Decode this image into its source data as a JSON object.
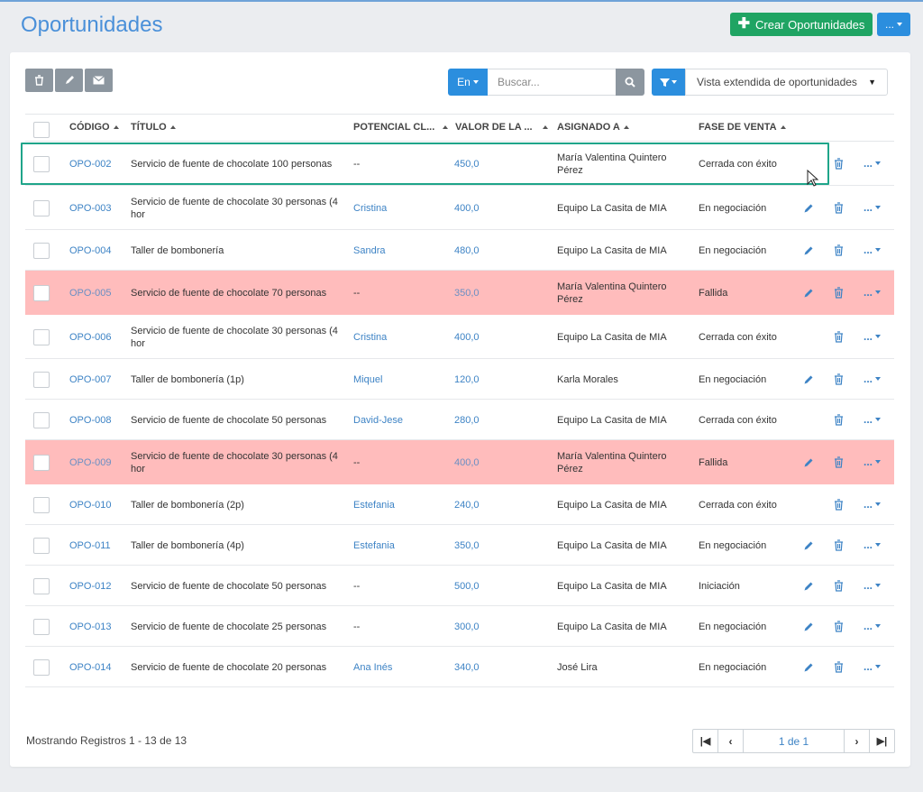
{
  "page": {
    "title": "Oportunidades"
  },
  "header": {
    "create_label": "Crear Oportunidades",
    "more_label": "..."
  },
  "toolbar": {
    "lang_label": "En",
    "search_placeholder": "Buscar...",
    "view_selected": "Vista extendida de oportunidades"
  },
  "columns": [
    "CÓDIGO",
    "TÍTULO",
    "POTENCIAL CL...",
    "VALOR DE LA ...",
    "ASIGNADO A",
    "FASE DE VENTA"
  ],
  "rows": [
    {
      "code": "OPO-002",
      "title": [
        "Servicio de fuente de chocolate 100 personas"
      ],
      "client": "--",
      "value": "450,0",
      "assigned": [
        "María Valentina Quintero",
        "Pérez"
      ],
      "phase": "Cerrada con éxito",
      "failed": false,
      "editable": false
    },
    {
      "code": "OPO-003",
      "title": [
        "Servicio de fuente de chocolate 30 personas (4",
        "hor"
      ],
      "client": "Cristina",
      "value": "400,0",
      "assigned": [
        "Equipo La Casita de MIA"
      ],
      "phase": "En negociación",
      "failed": false,
      "editable": true
    },
    {
      "code": "OPO-004",
      "title": [
        "Taller de bombonería"
      ],
      "client": "Sandra",
      "value": "480,0",
      "assigned": [
        "Equipo La Casita de MIA"
      ],
      "phase": "En negociación",
      "failed": false,
      "editable": true
    },
    {
      "code": "OPO-005",
      "title": [
        "Servicio de fuente de chocolate 70 personas"
      ],
      "client": "--",
      "value": "350,0",
      "assigned": [
        "María Valentina Quintero",
        "Pérez"
      ],
      "phase": "Fallida",
      "failed": true,
      "editable": true
    },
    {
      "code": "OPO-006",
      "title": [
        "Servicio de fuente de chocolate 30 personas (4",
        "hor"
      ],
      "client": "Cristina",
      "value": "400,0",
      "assigned": [
        "Equipo La Casita de MIA"
      ],
      "phase": "Cerrada con éxito",
      "failed": false,
      "editable": false
    },
    {
      "code": "OPO-007",
      "title": [
        "Taller de bombonería (1p)"
      ],
      "client": "Miquel",
      "value": "120,0",
      "assigned": [
        "Karla Morales"
      ],
      "phase": "En negociación",
      "failed": false,
      "editable": true
    },
    {
      "code": "OPO-008",
      "title": [
        "Servicio de fuente de chocolate 50 personas"
      ],
      "client": "David-Jese",
      "value": "280,0",
      "assigned": [
        "Equipo La Casita de MIA"
      ],
      "phase": "Cerrada con éxito",
      "failed": false,
      "editable": false
    },
    {
      "code": "OPO-009",
      "title": [
        "Servicio de fuente de chocolate 30 personas (4",
        "hor"
      ],
      "client": "--",
      "value": "400,0",
      "assigned": [
        "María Valentina Quintero",
        "Pérez"
      ],
      "phase": "Fallida",
      "failed": true,
      "editable": true
    },
    {
      "code": "OPO-010",
      "title": [
        "Taller de bombonería (2p)"
      ],
      "client": "Estefania",
      "value": "240,0",
      "assigned": [
        "Equipo La Casita de MIA"
      ],
      "phase": "Cerrada con éxito",
      "failed": false,
      "editable": false
    },
    {
      "code": "OPO-011",
      "title": [
        "Taller de bombonería (4p)"
      ],
      "client": "Estefania",
      "value": "350,0",
      "assigned": [
        "Equipo La Casita de MIA"
      ],
      "phase": "En negociación",
      "failed": false,
      "editable": true
    },
    {
      "code": "OPO-012",
      "title": [
        "Servicio de fuente de chocolate 50 personas"
      ],
      "client": "--",
      "value": "500,0",
      "assigned": [
        "Equipo La Casita de MIA"
      ],
      "phase": "Iniciación",
      "failed": false,
      "editable": true
    },
    {
      "code": "OPO-013",
      "title": [
        "Servicio de fuente de chocolate 25 personas"
      ],
      "client": "--",
      "value": "300,0",
      "assigned": [
        "Equipo La Casita de MIA"
      ],
      "phase": "En negociación",
      "failed": false,
      "editable": true
    },
    {
      "code": "OPO-014",
      "title": [
        "Servicio de fuente de chocolate 20 personas"
      ],
      "client": "Ana Inés",
      "value": "340,0",
      "assigned": [
        "José Lira"
      ],
      "phase": "En negociación",
      "failed": false,
      "editable": true
    }
  ],
  "row_more_label": "...",
  "footer": {
    "records_text": "Mostrando Registros 1 - 13 de 13",
    "page_info": "1 de 1"
  },
  "colors": {
    "accent": "#2b8ede",
    "create": "#1fa463",
    "failed_row": "#ffbcbc",
    "highlight": "#1fa58a",
    "link": "#3d83c5"
  },
  "icons": [
    "trash-icon",
    "pencil-icon",
    "envelope-icon",
    "search-icon",
    "filter-icon",
    "plus-icon",
    "first-page-icon",
    "prev-page-icon",
    "next-page-icon",
    "last-page-icon"
  ]
}
